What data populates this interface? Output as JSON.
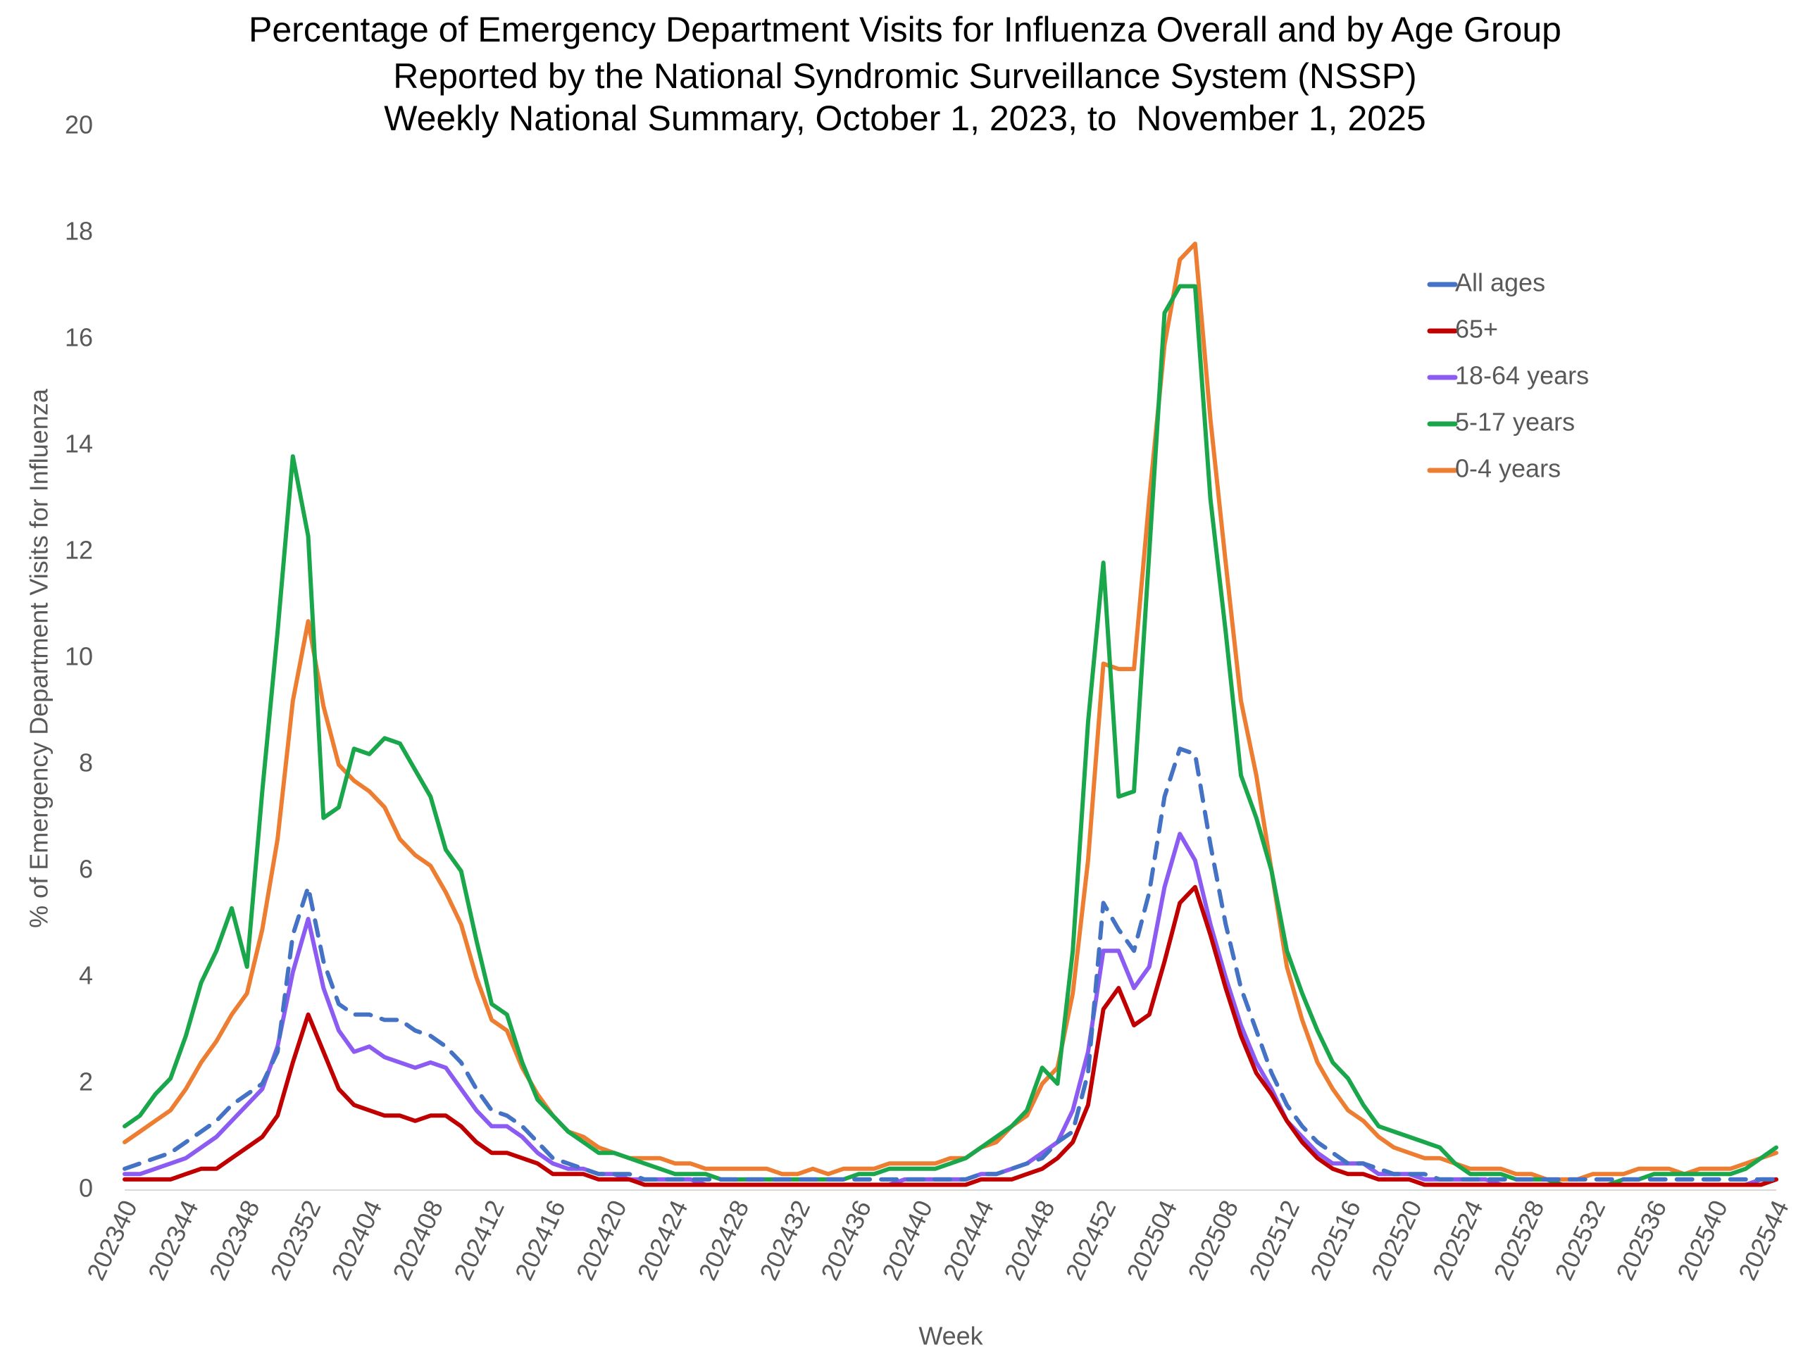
{
  "chart_data": {
    "type": "line",
    "title": [
      "Percentage of Emergency Department Visits for Influenza Overall and by Age Group",
      "Reported by the National Syndromic Surveillance System (NSSP)",
      "Weekly National Summary, October 1, 2023, to  November 1, 2025"
    ],
    "x_label": "Week",
    "y_label": "% of Emergency Department Visits for Influenza",
    "categories": [
      "202340",
      null,
      null,
      null,
      "202344",
      null,
      null,
      null,
      "202348",
      null,
      null,
      null,
      "202352",
      null,
      null,
      null,
      "202404",
      null,
      null,
      null,
      "202408",
      null,
      null,
      null,
      "202412",
      null,
      null,
      null,
      "202416",
      null,
      null,
      null,
      "202420",
      null,
      null,
      null,
      "202424",
      null,
      null,
      null,
      "202428",
      null,
      null,
      null,
      "202432",
      null,
      null,
      null,
      "202436",
      null,
      null,
      null,
      "202440",
      null,
      null,
      null,
      "202444",
      null,
      null,
      null,
      "202448",
      null,
      null,
      null,
      "202452",
      null,
      null,
      null,
      "202504",
      null,
      null,
      null,
      "202508",
      null,
      null,
      null,
      "202512",
      null,
      null,
      null,
      "202516",
      null,
      null,
      null,
      "202520",
      null,
      null,
      null,
      "202524",
      null,
      null,
      null,
      "202528",
      null,
      null,
      null,
      "202532",
      null,
      null,
      null,
      "202536",
      null,
      null,
      null,
      "202540",
      null,
      null,
      null,
      "202544"
    ],
    "ylim": [
      0,
      20
    ],
    "yticks": [
      0,
      2,
      4,
      6,
      8,
      10,
      12,
      14,
      16,
      18,
      20
    ],
    "grid": false,
    "legend": "upper right",
    "series": [
      {
        "name": "All ages",
        "color": "#4472c4",
        "dashed": true,
        "values": [
          0.4,
          0.5,
          0.6,
          0.7,
          0.9,
          1.1,
          1.3,
          1.6,
          1.8,
          2.0,
          2.6,
          4.8,
          5.7,
          4.3,
          3.5,
          3.3,
          3.3,
          3.2,
          3.2,
          3.0,
          2.9,
          2.7,
          2.4,
          1.9,
          1.5,
          1.4,
          1.2,
          0.9,
          0.6,
          0.5,
          0.4,
          0.3,
          0.3,
          0.3,
          0.2,
          0.2,
          0.2,
          0.2,
          0.2,
          0.2,
          0.2,
          0.2,
          0.2,
          0.2,
          0.2,
          0.2,
          0.2,
          0.2,
          0.2,
          0.2,
          0.2,
          0.2,
          0.2,
          0.2,
          0.2,
          0.2,
          0.3,
          0.3,
          0.4,
          0.5,
          0.6,
          0.9,
          1.1,
          2.2,
          5.4,
          4.9,
          4.5,
          5.6,
          7.4,
          8.3,
          8.2,
          6.5,
          5.0,
          3.8,
          3.0,
          2.2,
          1.6,
          1.2,
          0.9,
          0.7,
          0.5,
          0.5,
          0.4,
          0.3,
          0.3,
          0.3,
          0.2,
          0.2,
          0.2,
          0.2,
          0.2,
          0.2,
          0.2,
          0.2,
          0.2,
          0.2,
          0.2,
          0.2,
          0.2,
          0.2,
          0.2,
          0.2,
          0.2,
          0.2,
          0.2,
          0.2,
          0.2,
          0.2,
          0.2
        ]
      },
      {
        "name": "65+",
        "color": "#c00000",
        "values": [
          0.2,
          0.2,
          0.2,
          0.2,
          0.3,
          0.4,
          0.4,
          0.6,
          0.8,
          1.0,
          1.4,
          2.4,
          3.3,
          2.6,
          1.9,
          1.6,
          1.5,
          1.4,
          1.4,
          1.3,
          1.4,
          1.4,
          1.2,
          0.9,
          0.7,
          0.7,
          0.6,
          0.5,
          0.3,
          0.3,
          0.3,
          0.2,
          0.2,
          0.2,
          0.1,
          0.1,
          0.1,
          0.1,
          0.1,
          0.1,
          0.1,
          0.1,
          0.1,
          0.1,
          0.1,
          0.1,
          0.1,
          0.1,
          0.1,
          0.1,
          0.1,
          0.1,
          0.1,
          0.1,
          0.1,
          0.1,
          0.2,
          0.2,
          0.2,
          0.3,
          0.4,
          0.6,
          0.9,
          1.6,
          3.4,
          3.8,
          3.1,
          3.3,
          4.3,
          5.4,
          5.7,
          4.8,
          3.8,
          2.9,
          2.2,
          1.8,
          1.3,
          0.9,
          0.6,
          0.4,
          0.3,
          0.3,
          0.2,
          0.2,
          0.2,
          0.1,
          0.1,
          0.1,
          0.1,
          0.1,
          0.1,
          0.1,
          0.1,
          0.1,
          0.1,
          0.1,
          0.1,
          0.1,
          0.1,
          0.1,
          0.1,
          0.1,
          0.1,
          0.1,
          0.1,
          0.1,
          0.1,
          0.1,
          0.2
        ]
      },
      {
        "name": "18-64 years",
        "color": "#8c5cf2",
        "values": [
          0.3,
          0.3,
          0.4,
          0.5,
          0.6,
          0.8,
          1.0,
          1.3,
          1.6,
          1.9,
          2.7,
          4.1,
          5.1,
          3.8,
          3.0,
          2.6,
          2.7,
          2.5,
          2.4,
          2.3,
          2.4,
          2.3,
          1.9,
          1.5,
          1.2,
          1.2,
          1.0,
          0.7,
          0.5,
          0.4,
          0.4,
          0.3,
          0.3,
          0.2,
          0.2,
          0.2,
          0.2,
          0.2,
          0.1,
          0.1,
          0.1,
          0.1,
          0.1,
          0.1,
          0.1,
          0.1,
          0.1,
          0.1,
          0.1,
          0.1,
          0.1,
          0.2,
          0.2,
          0.2,
          0.2,
          0.2,
          0.3,
          0.3,
          0.4,
          0.5,
          0.7,
          0.9,
          1.5,
          2.6,
          4.5,
          4.5,
          3.8,
          4.2,
          5.7,
          6.7,
          6.2,
          5.0,
          4.0,
          3.1,
          2.4,
          1.9,
          1.3,
          1.0,
          0.7,
          0.5,
          0.5,
          0.5,
          0.3,
          0.3,
          0.3,
          0.2,
          0.2,
          0.2,
          0.2,
          0.2,
          0.1,
          0.1,
          0.1,
          0.1,
          0.1,
          0.1,
          0.1,
          0.1,
          0.1,
          0.1,
          0.1,
          0.1,
          0.1,
          0.1,
          0.1,
          0.1,
          0.1,
          0.2,
          0.2
        ]
      },
      {
        "name": "5-17 years",
        "color": "#1aa64a",
        "values": [
          1.2,
          1.4,
          1.8,
          2.1,
          2.9,
          3.9,
          4.5,
          5.3,
          4.2,
          7.5,
          10.5,
          13.8,
          12.3,
          7.0,
          7.2,
          8.3,
          8.2,
          8.5,
          8.4,
          7.9,
          7.4,
          6.4,
          6.0,
          4.7,
          3.5,
          3.3,
          2.4,
          1.7,
          1.4,
          1.1,
          0.9,
          0.7,
          0.7,
          0.6,
          0.5,
          0.4,
          0.3,
          0.3,
          0.3,
          0.2,
          0.2,
          0.2,
          0.2,
          0.2,
          0.2,
          0.2,
          0.2,
          0.2,
          0.3,
          0.3,
          0.4,
          0.4,
          0.4,
          0.4,
          0.5,
          0.6,
          0.8,
          1.0,
          1.2,
          1.5,
          2.3,
          2.0,
          4.5,
          8.8,
          11.8,
          7.4,
          7.5,
          12.0,
          16.5,
          17.0,
          17.0,
          13.0,
          10.5,
          7.8,
          7.0,
          6.0,
          4.5,
          3.7,
          3.0,
          2.4,
          2.1,
          1.6,
          1.2,
          1.1,
          1.0,
          0.9,
          0.8,
          0.5,
          0.3,
          0.3,
          0.3,
          0.2,
          0.2,
          0.2,
          0.1,
          0.1,
          0.1,
          0.1,
          0.2,
          0.2,
          0.3,
          0.3,
          0.3,
          0.3,
          0.3,
          0.3,
          0.4,
          0.6,
          0.8
        ]
      },
      {
        "name": "0-4 years",
        "color": "#ed7d31",
        "values": [
          0.9,
          1.1,
          1.3,
          1.5,
          1.9,
          2.4,
          2.8,
          3.3,
          3.7,
          4.9,
          6.6,
          9.2,
          10.7,
          9.1,
          8.0,
          7.7,
          7.5,
          7.2,
          6.6,
          6.3,
          6.1,
          5.6,
          5.0,
          4.0,
          3.2,
          3.0,
          2.3,
          1.8,
          1.4,
          1.1,
          1.0,
          0.8,
          0.7,
          0.6,
          0.6,
          0.6,
          0.5,
          0.5,
          0.4,
          0.4,
          0.4,
          0.4,
          0.4,
          0.3,
          0.3,
          0.4,
          0.3,
          0.4,
          0.4,
          0.4,
          0.5,
          0.5,
          0.5,
          0.5,
          0.6,
          0.6,
          0.8,
          0.9,
          1.2,
          1.4,
          2.0,
          2.3,
          3.7,
          6.2,
          9.9,
          9.8,
          9.8,
          13.0,
          15.9,
          17.5,
          17.8,
          14.5,
          11.8,
          9.2,
          7.8,
          6.0,
          4.2,
          3.2,
          2.4,
          1.9,
          1.5,
          1.3,
          1.0,
          0.8,
          0.7,
          0.6,
          0.6,
          0.5,
          0.4,
          0.4,
          0.4,
          0.3,
          0.3,
          0.2,
          0.2,
          0.2,
          0.3,
          0.3,
          0.3,
          0.4,
          0.4,
          0.4,
          0.3,
          0.4,
          0.4,
          0.4,
          0.5,
          0.6,
          0.7
        ]
      }
    ]
  }
}
